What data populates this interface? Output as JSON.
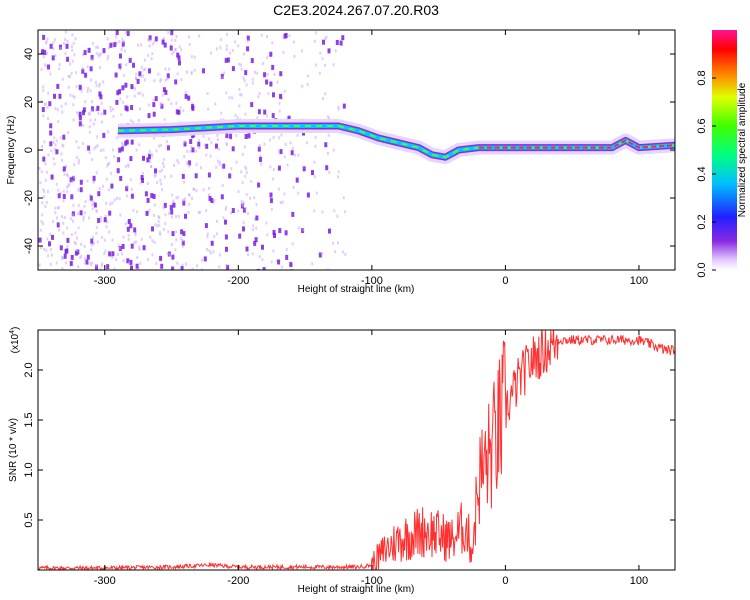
{
  "title": "C2E3.2024.267.07.20.R03",
  "chart_data": [
    {
      "type": "heatmap",
      "xlabel": "Height of straight line (km)",
      "ylabel": "Frequency (Hz)",
      "xlim": [
        -350,
        127
      ],
      "ylim": [
        -50,
        50
      ],
      "xticks": [
        "-300",
        "-200",
        "-100",
        "0",
        "100"
      ],
      "xtick_values": [
        -300,
        -200,
        -100,
        0,
        100
      ],
      "yticks": [
        "-40",
        "-20",
        "0",
        "20",
        "40"
      ],
      "ytick_values": [
        -40,
        -20,
        0,
        20,
        40
      ],
      "colorbar": {
        "label": "Normalized spectral amplitude",
        "ticks": [
          "0.0",
          "0.2",
          "0.4",
          "0.6",
          "0.8"
        ],
        "tick_values": [
          0.0,
          0.2,
          0.4,
          0.6,
          0.8
        ],
        "range": [
          0,
          1
        ]
      },
      "ridge": {
        "x": [
          -290,
          -250,
          -200,
          -160,
          -125,
          -110,
          -95,
          -80,
          -65,
          -55,
          -45,
          -35,
          -20,
          0,
          40,
          80,
          90,
          100,
          127
        ],
        "y": [
          8,
          8.5,
          10,
          10,
          10,
          8,
          5,
          3,
          1,
          -2,
          -3,
          0,
          1,
          1,
          1,
          1,
          4,
          1,
          2
        ]
      }
    },
    {
      "type": "line",
      "xlabel": "Height of straight line (km)",
      "ylabel": "SNR (10 * v/v)",
      "multiplier": "(x10",
      "multiplier_exp": "4",
      "multiplier_close": ")",
      "xlim": [
        -350,
        127
      ],
      "ylim": [
        0,
        2.4
      ],
      "xticks": [
        "-300",
        "-200",
        "-100",
        "0",
        "100"
      ],
      "xtick_values": [
        -300,
        -200,
        -100,
        0,
        100
      ],
      "yticks": [
        "0.5",
        "1.0",
        "1.5",
        "2.0"
      ],
      "ytick_values": [
        0.5,
        1.0,
        1.5,
        2.0
      ],
      "color": "#ff3030",
      "series": [
        {
          "x": [
            -350,
            -300,
            -250,
            -220,
            -200,
            -150,
            -110,
            -100,
            -90,
            -80,
            -70,
            -60,
            -50,
            -40,
            -30,
            -25,
            -20,
            -10,
            0,
            10,
            20,
            30,
            40,
            60,
            80,
            100,
            110,
            120,
            127
          ],
          "y": [
            0.02,
            0.02,
            0.03,
            0.05,
            0.03,
            0.03,
            0.03,
            0.05,
            0.2,
            0.3,
            0.35,
            0.4,
            0.35,
            0.3,
            0.45,
            0.2,
            0.9,
            1.2,
            1.6,
            1.9,
            2.1,
            2.2,
            2.3,
            2.3,
            2.3,
            2.3,
            2.25,
            2.2,
            2.2
          ]
        }
      ]
    }
  ]
}
